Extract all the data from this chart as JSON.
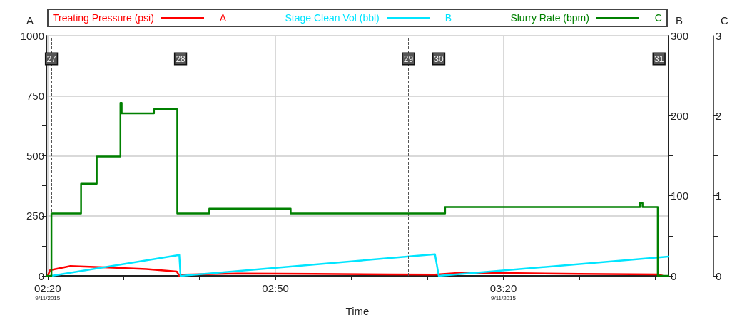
{
  "chart_data": {
    "type": "line",
    "xlabel": "Time",
    "ylabel": "A",
    "y2label": "B",
    "y3label": "C",
    "legend": "top",
    "grid": true,
    "marker": "none",
    "line_style": "solid",
    "xlim": [
      "2015-09-11T02:19:50",
      "2015-09-11T03:41:45"
    ],
    "xticks": [
      {
        "value": "2015-09-11T02:20",
        "label": "02:20\n9/11/2015"
      },
      {
        "value": "2015-09-11T02:30",
        "label": null
      },
      {
        "value": "2015-09-11T02:40",
        "label": null
      },
      {
        "value": "2015-09-11T02:50",
        "label": "02:50"
      },
      {
        "value": "2015-09-11T03:00",
        "label": null
      },
      {
        "value": "2015-09-11T03:10",
        "label": null
      },
      {
        "value": "2015-09-11T03:20",
        "label": "03:20\n9/11/2015"
      },
      {
        "value": "2015-09-11T03:30",
        "label": null
      },
      {
        "value": "2015-09-11T03:40",
        "label": null
      }
    ],
    "ylim": [
      0,
      1000
    ],
    "yticks": [
      0,
      {
        "value": 125,
        "label": null
      },
      250,
      {
        "value": 375,
        "label": null
      },
      500,
      {
        "value": 625,
        "label": null
      },
      750,
      {
        "value": 875,
        "label": null
      },
      1000
    ],
    "y2lim": [
      0,
      300
    ],
    "y2ticks": [
      0,
      {
        "value": 50,
        "label": null
      },
      100,
      {
        "value": 150,
        "label": null
      },
      200,
      {
        "value": 250,
        "label": null
      },
      300
    ],
    "y3lim": [
      0,
      3
    ],
    "y3ticks": [
      0,
      {
        "value": 0.5,
        "label": null
      },
      1,
      {
        "value": 1.5,
        "label": null
      },
      2,
      {
        "value": 2.5,
        "label": null
      },
      3
    ],
    "ref_lines": [
      {
        "axis": "x",
        "value": "2015-09-11T02:20:30",
        "label": "27",
        "line_style": "dashed",
        "color": "#555555"
      },
      {
        "axis": "x",
        "value": "2015-09-11T02:37:30",
        "label": "28",
        "line_style": "dashed",
        "color": "#555555"
      },
      {
        "axis": "x",
        "value": "2015-09-11T03:07:30",
        "label": "29",
        "line_style": "dashed",
        "color": "#555555"
      },
      {
        "axis": "x",
        "value": "2015-09-11T03:11:30",
        "label": "30",
        "line_style": "dashed",
        "color": "#555555"
      },
      {
        "axis": "x",
        "value": "2015-09-11T03:40:30",
        "label": "31",
        "line_style": "dashed",
        "color": "#555555"
      }
    ],
    "series": [
      {
        "name": "Treating Pressure (psi)",
        "color": "#ff0000",
        "axis": "y",
        "x": [
          "2015-09-11T02:20:00",
          "2015-09-11T02:20:20",
          "2015-09-11T02:23:00",
          "2015-09-11T02:28:00",
          "2015-09-11T02:33:00",
          "2015-09-11T02:37:00",
          "2015-09-11T02:37:20",
          "2015-09-11T02:38:00",
          "2015-09-11T02:45:00",
          "2015-09-11T02:55:00",
          "2015-09-11T03:05:00",
          "2015-09-11T03:11:00",
          "2015-09-11T03:14:00",
          "2015-09-11T03:20:00",
          "2015-09-11T03:30:00",
          "2015-09-11T03:40:20",
          "2015-09-11T03:41:00"
        ],
        "values": [
          0,
          24,
          41,
          35,
          28,
          18,
          0,
          5,
          10,
          8,
          6,
          5,
          12,
          12,
          8,
          6,
          0
        ]
      },
      {
        "name": "Stage Clean Vol (bbl)",
        "color": "#00e5ff",
        "axis": "y2",
        "x": [
          "2015-09-11T02:20:30",
          "2015-09-11T02:37:20",
          "2015-09-11T02:37:30",
          "2015-09-11T03:11:00",
          "2015-09-11T03:11:30",
          "2015-09-11T03:41:45"
        ],
        "values": [
          0,
          26,
          0,
          27,
          0,
          24
        ]
      },
      {
        "name": "Slurry Rate (bpm)",
        "color": "#008000",
        "axis": "y3",
        "type": "step",
        "x": [
          "2015-09-11T02:19:50",
          "2015-09-11T02:20:30",
          "2015-09-11T02:24:24",
          "2015-09-11T02:26:28",
          "2015-09-11T02:29:35",
          "2015-09-11T02:29:45",
          "2015-09-11T02:34:00",
          "2015-09-11T02:37:04",
          "2015-09-11T02:41:17",
          "2015-09-11T02:52:00",
          "2015-09-11T03:12:20",
          "2015-09-11T03:38:00",
          "2015-09-11T03:38:20",
          "2015-09-11T03:40:20",
          "2015-09-11T03:41:45"
        ],
        "values": [
          0,
          0.78,
          1.15,
          1.49,
          2.16,
          2.03,
          2.08,
          0.78,
          0.84,
          0.78,
          0.86,
          0.91,
          0.86,
          0,
          0
        ]
      }
    ]
  }
}
